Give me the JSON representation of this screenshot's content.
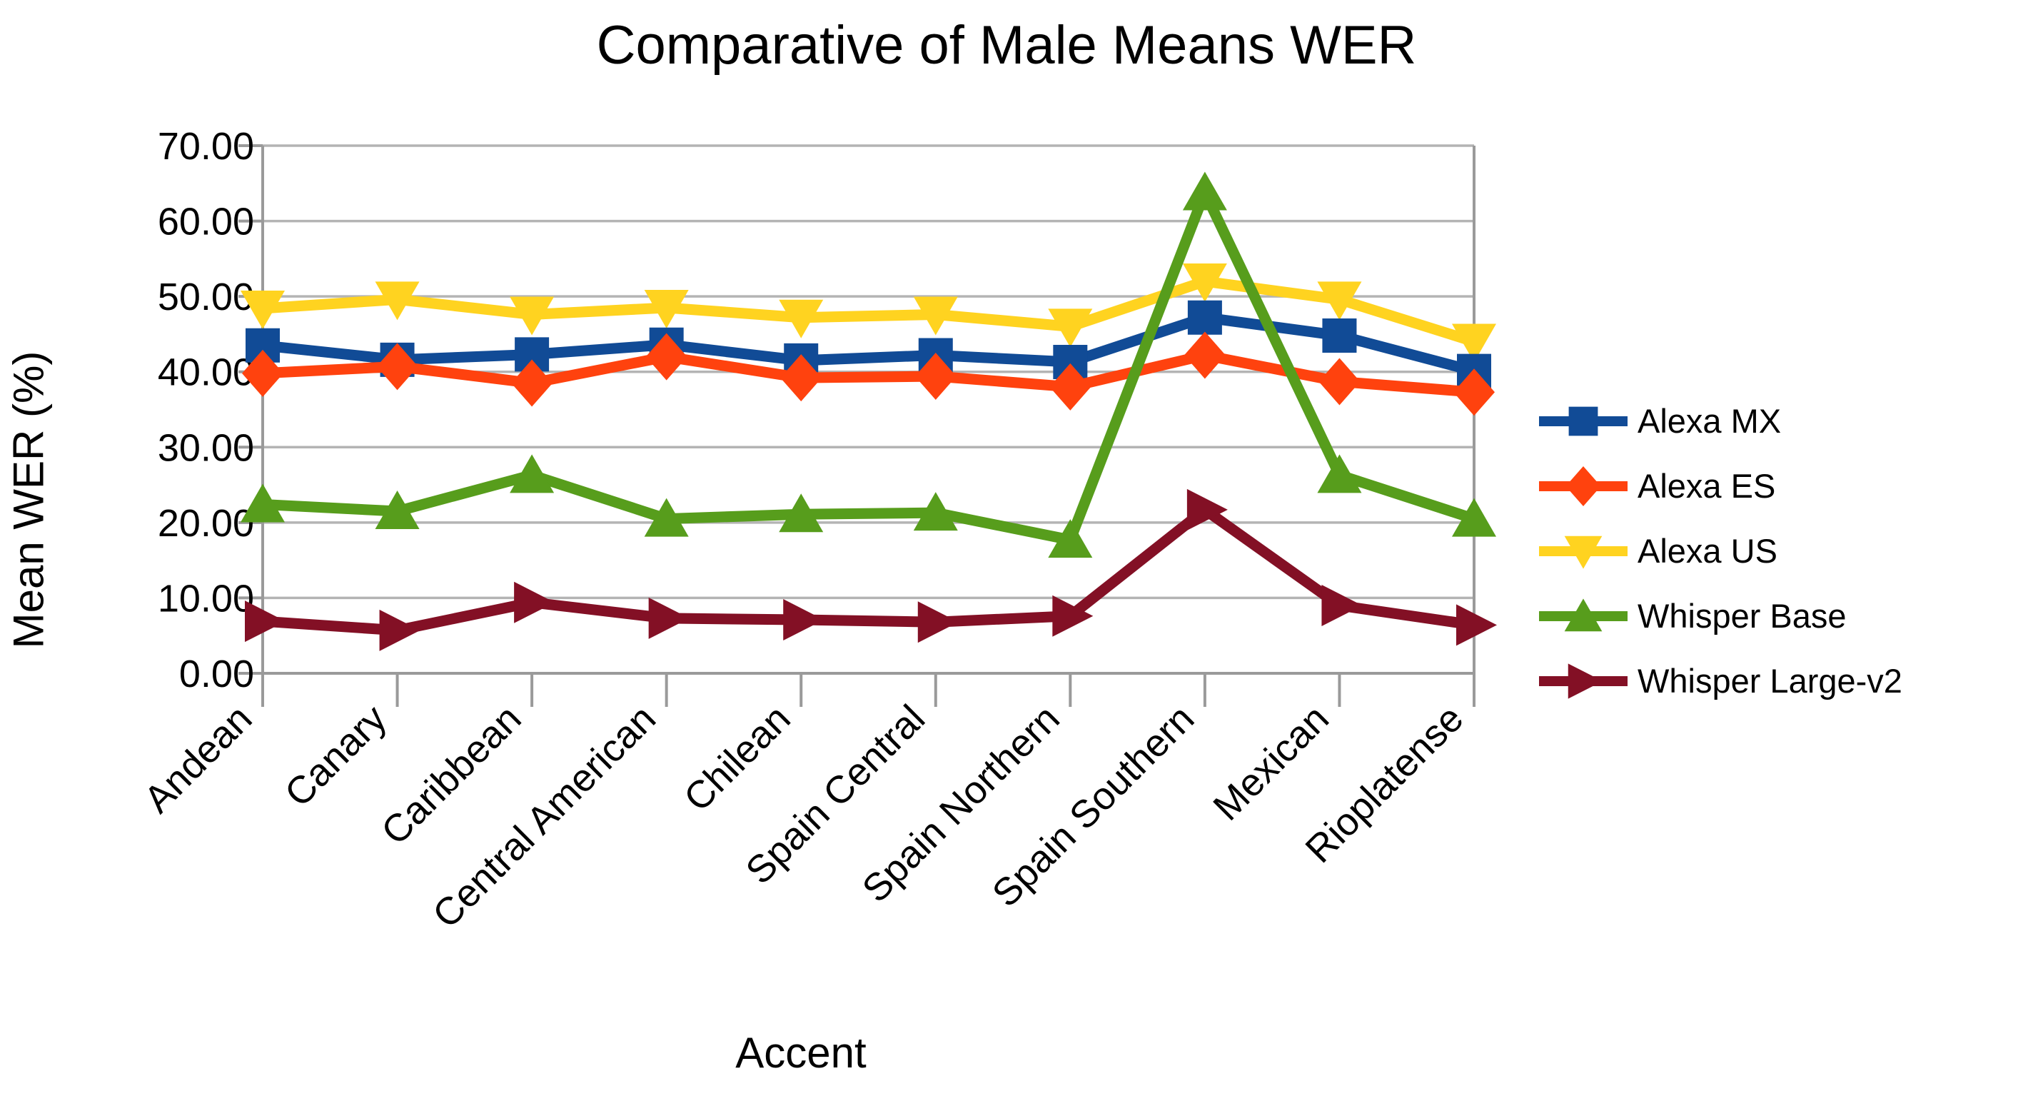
{
  "title": "Comparative of Male Means WER",
  "chart_data": {
    "type": "line",
    "title": "Comparative of Male Means WER",
    "xlabel": "Accent",
    "ylabel": "Mean WER (%)",
    "ylim": [
      0,
      70
    ],
    "y_tick_step": 10,
    "y_tick_labels": [
      "0.00",
      "10.00",
      "20.00",
      "30.00",
      "40.00",
      "50.00",
      "60.00",
      "70.00"
    ],
    "grid": true,
    "legend_position": "right",
    "categories": [
      "Andean",
      "Canary",
      "Caribbean",
      "Central American",
      "Chilean",
      "Spain Central",
      "Spain Northern",
      "Spain Southern",
      "Mexican",
      "Rioplatense"
    ],
    "series": [
      {
        "name": "Alexa MX",
        "color": "#114b96",
        "marker": "square",
        "values": [
          43.5,
          41.6,
          42.3,
          43.6,
          41.5,
          42.2,
          41.3,
          47.2,
          44.8,
          40.1
        ]
      },
      {
        "name": "Alexa ES",
        "color": "#ff420e",
        "marker": "diamond",
        "values": [
          39.8,
          40.7,
          38.5,
          42.0,
          39.2,
          39.4,
          38.0,
          42.2,
          38.7,
          37.3
        ]
      },
      {
        "name": "Alexa US",
        "color": "#ffd320",
        "marker": "triangle-down",
        "values": [
          48.4,
          49.6,
          47.6,
          48.5,
          47.2,
          47.6,
          46.0,
          52.0,
          49.6,
          44.0
        ]
      },
      {
        "name": "Whisper Base",
        "color": "#579d1c",
        "marker": "triangle-up",
        "values": [
          22.4,
          21.5,
          26.3,
          20.5,
          21.1,
          21.3,
          17.7,
          63.8,
          26.3,
          20.5
        ]
      },
      {
        "name": "Whisper Large-v2",
        "color": "#831025",
        "marker": "triangle-right",
        "values": [
          6.9,
          5.7,
          9.4,
          7.3,
          7.1,
          6.8,
          7.6,
          21.7,
          9.0,
          6.4
        ]
      }
    ],
    "colors": {
      "grid": "#b4b4b4",
      "axis": "#9a9a9a",
      "text": "#000000",
      "background": "#ffffff"
    }
  }
}
